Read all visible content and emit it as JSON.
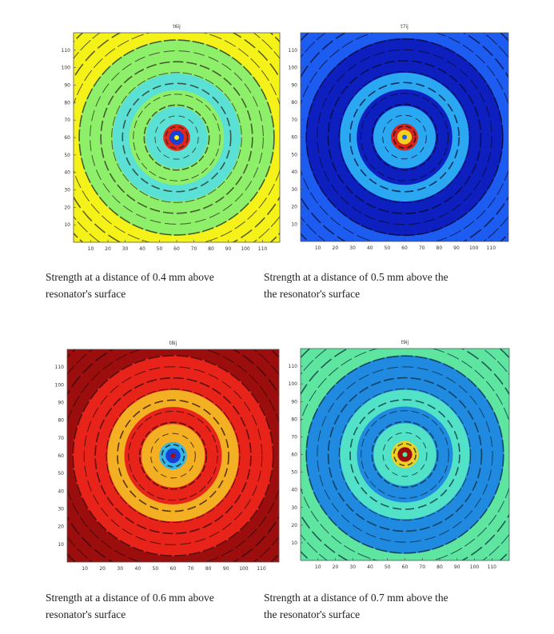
{
  "panels": [
    {
      "plot_title": "t6ij",
      "caption_line1": "Strength at a distance of 0.4 mm above",
      "caption_line2": "resonator's surface",
      "palette": {
        "outer": "#f5f21a",
        "mid": "#8ef06a",
        "inner": "#5be0d6",
        "core1": "#e2271b",
        "core2": "#1a3fd6",
        "line": "#2a2a1a"
      }
    },
    {
      "plot_title": "t7ij",
      "caption_line1": "Strength at a distance of 0.5 mm above the",
      "caption_line2": "the resonator's surface",
      "palette": {
        "outer": "#1c5cf0",
        "mid": "#0d1fbf",
        "inner": "#2aa8f2",
        "core1": "#d8241a",
        "core2": "#f0d020",
        "line": "#0a0a30"
      }
    },
    {
      "plot_title": "t8ij",
      "caption_line1": "Strength at a distance of 0.6 mm above",
      "caption_line2": "resonator's surface",
      "palette": {
        "outer": "#9c0d0d",
        "mid": "#e8231a",
        "inner": "#f2b022",
        "core1": "#34b8e8",
        "core2": "#1a3fd6",
        "line": "#2a0a0a"
      }
    },
    {
      "plot_title": "t9ij",
      "caption_line1": "Strength at a distance of 0.7 mm above the",
      "caption_line2": "the resonator's surface",
      "palette": {
        "outer": "#5ee6a0",
        "mid": "#1f8ae0",
        "inner": "#52e2c8",
        "core1": "#f0d020",
        "core2": "#9c0d0d",
        "line": "#0a2a3a"
      }
    }
  ],
  "chart_data": [
    {
      "type": "heatmap",
      "title": "t6ij",
      "xlim": [
        0,
        120
      ],
      "ylim": [
        0,
        120
      ],
      "xticks": [
        10,
        20,
        30,
        40,
        50,
        60,
        70,
        80,
        90,
        100,
        110
      ],
      "yticks": [
        10,
        20,
        30,
        40,
        50,
        60,
        70,
        80,
        90,
        100,
        110
      ],
      "center": [
        60,
        60
      ]
    },
    {
      "type": "heatmap",
      "title": "t7ij",
      "xlim": [
        0,
        120
      ],
      "ylim": [
        0,
        120
      ],
      "xticks": [
        10,
        20,
        30,
        40,
        50,
        60,
        70,
        80,
        90,
        100,
        110
      ],
      "yticks": [
        10,
        20,
        30,
        40,
        50,
        60,
        70,
        80,
        90,
        100,
        110
      ],
      "center": [
        60,
        60
      ]
    },
    {
      "type": "heatmap",
      "title": "t8ij",
      "xlim": [
        0,
        120
      ],
      "ylim": [
        0,
        120
      ],
      "xticks": [
        10,
        20,
        30,
        40,
        50,
        60,
        70,
        80,
        90,
        100,
        110
      ],
      "yticks": [
        10,
        20,
        30,
        40,
        50,
        60,
        70,
        80,
        90,
        100,
        110
      ],
      "center": [
        60,
        60
      ]
    },
    {
      "type": "heatmap",
      "title": "t9ij",
      "xlim": [
        0,
        120
      ],
      "ylim": [
        0,
        120
      ],
      "xticks": [
        10,
        20,
        30,
        40,
        50,
        60,
        70,
        80,
        90,
        100,
        110
      ],
      "yticks": [
        10,
        20,
        30,
        40,
        50,
        60,
        70,
        80,
        90,
        100,
        110
      ],
      "center": [
        60,
        60
      ]
    }
  ]
}
